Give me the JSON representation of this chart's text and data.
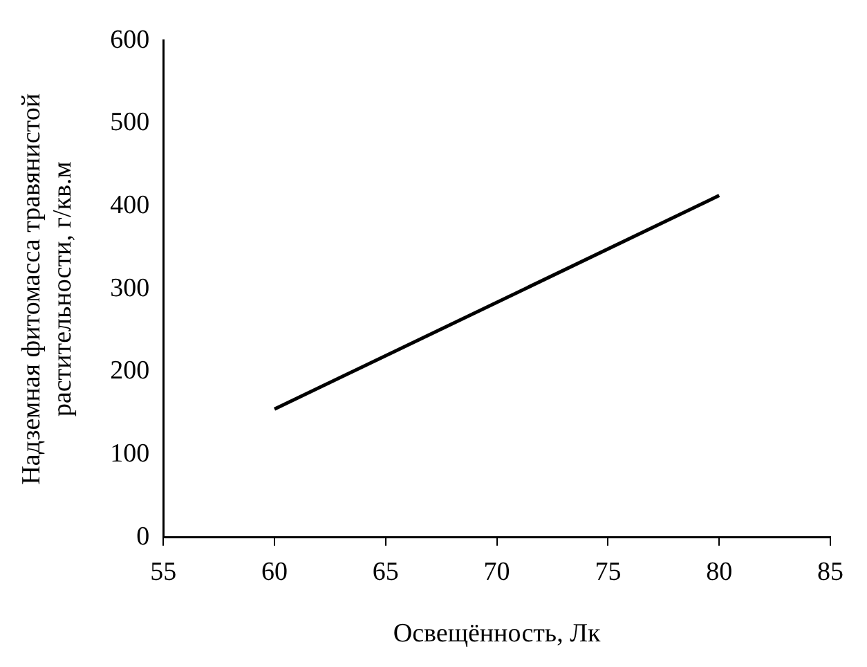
{
  "chart_data": {
    "type": "line",
    "xlabel": "Освещённость, Лк",
    "ylabel": "Надземная фитомасса травянистой\nрастительности, г/кв.м",
    "x": [
      60,
      80
    ],
    "series": [
      {
        "color": "#000000",
        "values": [
          155,
          413
        ]
      }
    ],
    "xlim": [
      55,
      85
    ],
    "xticks": [
      55,
      60,
      65,
      70,
      75,
      80,
      85
    ],
    "ylim": [
      0,
      600
    ],
    "yticks": [
      0,
      100,
      200,
      300,
      400,
      500,
      600
    ],
    "grid": false,
    "legend": false,
    "marker": "none",
    "line_style": "solid"
  }
}
